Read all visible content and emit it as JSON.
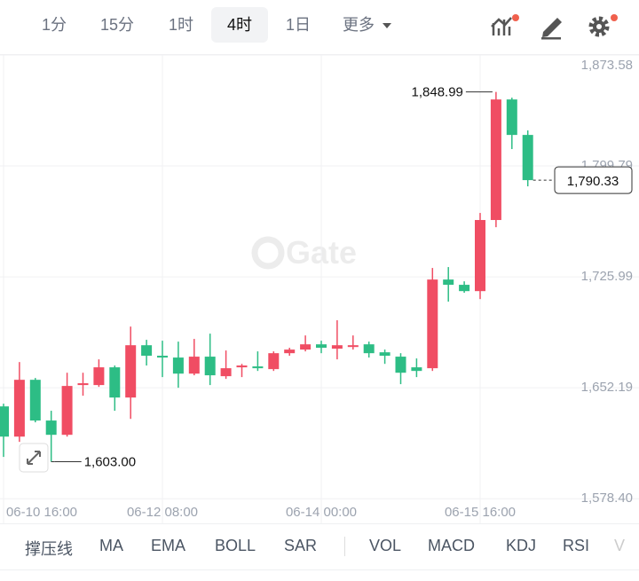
{
  "toolbar": {
    "intervals": [
      "1分",
      "15分",
      "1时",
      "4时",
      "1日",
      "更多"
    ],
    "selected": 3
  },
  "watermark": "Gate",
  "indicators": [
    "撑压线",
    "MA",
    "EMA",
    "BOLL",
    "SAR",
    "VOL",
    "MACD",
    "KDJ",
    "RSI",
    "V"
  ],
  "chart_data": {
    "type": "candlestick",
    "categories": [
      "06-10 16:00",
      null,
      null,
      null,
      null,
      null,
      null,
      null,
      null,
      null,
      "06-12 08:00",
      null,
      null,
      null,
      null,
      null,
      null,
      null,
      null,
      null,
      "06-14 00:00",
      null,
      null,
      null,
      null,
      null,
      null,
      null,
      null,
      null,
      "06-15 16:00",
      null,
      null,
      null
    ],
    "open": [
      1639.8,
      1619.7,
      1657.5,
      1630.4,
      1620.9,
      1654.0,
      1654.0,
      1665.8,
      1645.7,
      1680.5,
      1673.5,
      1672.3,
      1661.6,
      1672.9,
      1659.9,
      1665.8,
      1666.4,
      1664.6,
      1675.2,
      1677.6,
      1681.1,
      1678.2,
      1679.9,
      1681.1,
      1675.8,
      1672.9,
      1665.8,
      1665.2,
      1724.2,
      1720.7,
      1716.5,
      1763.8,
      1844.0,
      1820.4
    ],
    "high": [
      1641.6,
      1669.3,
      1658.7,
      1636.9,
      1662.2,
      1662.2,
      1671.1,
      1667.0,
      1692.9,
      1684.1,
      1683.5,
      1682.9,
      1684.7,
      1688.2,
      1677.0,
      1668.1,
      1676.4,
      1676.4,
      1678.8,
      1687.0,
      1683.5,
      1697.1,
      1687.0,
      1682.9,
      1677.6,
      1675.2,
      1671.7,
      1731.9,
      1732.5,
      1723.0,
      1768.5,
      1848.99,
      1845.2,
      1823.4
    ],
    "low": [
      1606.2,
      1616.2,
      1629.2,
      1603.0,
      1619.7,
      1646.9,
      1652.8,
      1636.9,
      1631.5,
      1667.0,
      1659.3,
      1652.2,
      1660.5,
      1654.0,
      1658.1,
      1659.3,
      1663.4,
      1663.4,
      1673.5,
      1676.4,
      1675.2,
      1671.1,
      1677.6,
      1672.3,
      1668.1,
      1654.6,
      1659.3,
      1663.4,
      1709.5,
      1715.4,
      1711.2,
      1759.0,
      1811.0,
      1786.2
    ],
    "close": [
      1619.7,
      1657.5,
      1630.4,
      1620.9,
      1653.4,
      1655.2,
      1665.8,
      1645.7,
      1680.5,
      1673.5,
      1672.3,
      1661.6,
      1672.9,
      1660.5,
      1665.2,
      1667.0,
      1665.2,
      1675.2,
      1677.6,
      1681.1,
      1678.8,
      1680.5,
      1680.5,
      1675.2,
      1673.5,
      1662.2,
      1663.4,
      1724.2,
      1720.7,
      1716.5,
      1763.8,
      1844.0,
      1820.4,
      1790.33
    ],
    "up_color": "#f04d63",
    "down_color": "#2dbd85",
    "ylim": [
      1562,
      1873.58
    ],
    "yticks": [
      {
        "value": 1873.58,
        "label": "1,873.58"
      },
      {
        "value": 1799.79,
        "label": "1,799.79"
      },
      {
        "value": 1725.99,
        "label": "1,725.99"
      },
      {
        "value": 1652.19,
        "label": "1,652.19"
      },
      {
        "value": 1578.4,
        "label": "1,578.40"
      }
    ],
    "grid": true,
    "annotations": [
      {
        "value": 1848.99,
        "label": "1,848.99"
      },
      {
        "value": 1603.0,
        "label": "1,603.00"
      }
    ],
    "last_price": {
      "value": 1790.33,
      "label": "1,790.33"
    }
  }
}
